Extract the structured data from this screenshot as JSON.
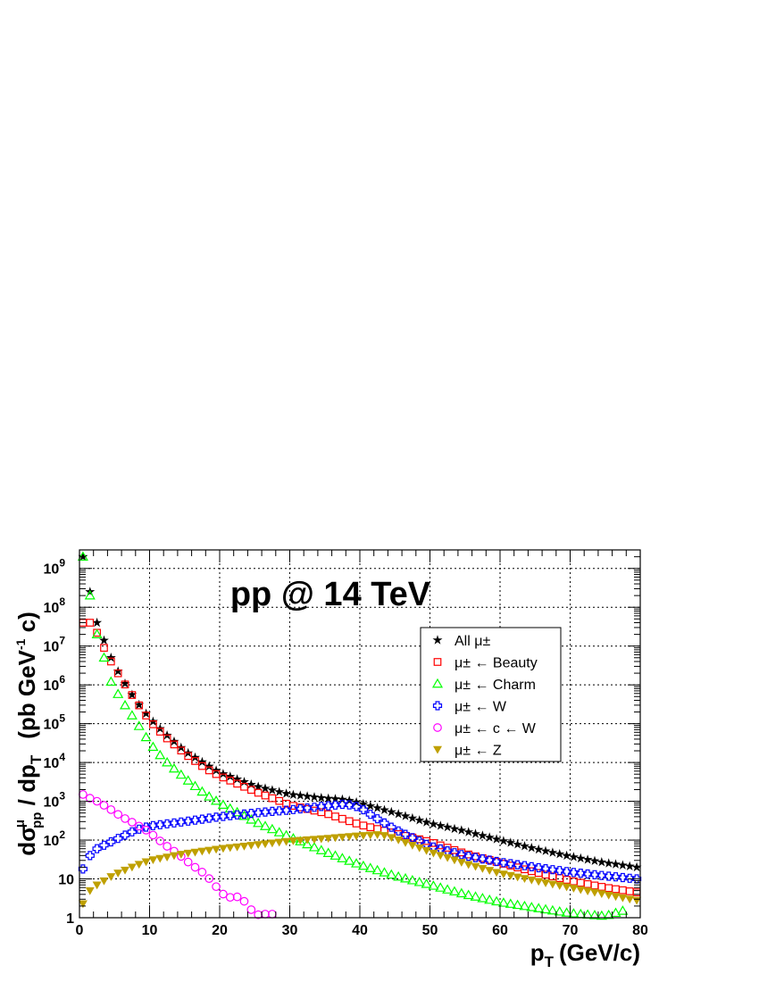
{
  "chart_data": {
    "type": "scatter",
    "title": "pp @ 14 TeV",
    "xlabel_main": "p",
    "xlabel_sub": "T",
    "xlabel_unit": "(GeV/c)",
    "ylabel": "dσ^μ_pp / dp_T (pb GeV^-1 c)",
    "ylabel_parts": {
      "d": "d",
      "sigma": "σ",
      "sup": "μ",
      "sub": "pp",
      "slash": " / dp",
      "subT": "T",
      "unit": "(pb GeV",
      "unitsup": "-1",
      "unitend": " c)"
    },
    "xlim": [
      0,
      80
    ],
    "ylim": [
      1,
      3000000000
    ],
    "yscale": "log",
    "grid": true,
    "legend_position": "top-right",
    "x_ticks": [
      "0",
      "10",
      "20",
      "30",
      "40",
      "50",
      "60",
      "70",
      "80"
    ],
    "y_ticks": [
      {
        "base": "1",
        "exp": ""
      },
      {
        "base": "10",
        "exp": ""
      },
      {
        "base": "10",
        "exp": "2"
      },
      {
        "base": "10",
        "exp": "3"
      },
      {
        "base": "10",
        "exp": "4"
      },
      {
        "base": "10",
        "exp": "5"
      },
      {
        "base": "10",
        "exp": "6"
      },
      {
        "base": "10",
        "exp": "7"
      },
      {
        "base": "10",
        "exp": "8"
      },
      {
        "base": "10",
        "exp": "9"
      }
    ],
    "series": [
      {
        "name": "All μ±",
        "marker": "star",
        "color": "#000000",
        "anchors": [
          [
            0.5,
            2000000000.0
          ],
          [
            1.5,
            250000000.0
          ],
          [
            2.5,
            40000000.0
          ],
          [
            3.5,
            14000000.0
          ],
          [
            4.5,
            5000000.0
          ],
          [
            6,
            1500000.0
          ],
          [
            8,
            400000.0
          ],
          [
            10,
            140000.0
          ],
          [
            12,
            60000.0
          ],
          [
            15,
            20000.0
          ],
          [
            18,
            9000.0
          ],
          [
            20,
            5500.0
          ],
          [
            25,
            2500.0
          ],
          [
            30,
            1500.0
          ],
          [
            35,
            1200.0
          ],
          [
            38,
            1100.0
          ],
          [
            40,
            900.0
          ],
          [
            45,
            500.0
          ],
          [
            50,
            270.0
          ],
          [
            55,
            170.0
          ],
          [
            60,
            100.0
          ],
          [
            65,
            60.0
          ],
          [
            70,
            38.0
          ],
          [
            75,
            26.0
          ],
          [
            79.5,
            20.0
          ]
        ]
      },
      {
        "name": "μ± ← Beauty",
        "marker": "square",
        "color": "#ff0000",
        "anchors": [
          [
            0.5,
            40000000.0
          ],
          [
            1.5,
            40000000.0
          ],
          [
            2.5,
            22000000.0
          ],
          [
            3.5,
            9000000.0
          ],
          [
            4.5,
            4000000.0
          ],
          [
            6,
            1400000.0
          ],
          [
            8,
            400000.0
          ],
          [
            10,
            120000.0
          ],
          [
            12,
            50000.0
          ],
          [
            15,
            17000.0
          ],
          [
            18,
            7000.0
          ],
          [
            20,
            4500.0
          ],
          [
            25,
            1800.0
          ],
          [
            30,
            800.0
          ],
          [
            35,
            500.0
          ],
          [
            40,
            250.0
          ],
          [
            45,
            150.0
          ],
          [
            50,
            90.0
          ],
          [
            55,
            45.0
          ],
          [
            60,
            26.0
          ],
          [
            65,
            15.0
          ],
          [
            70,
            9
          ],
          [
            75,
            6
          ],
          [
            79.5,
            4.5
          ]
        ]
      },
      {
        "name": "μ± ← Charm",
        "marker": "triangle",
        "color": "#00ff00",
        "anchors": [
          [
            0.5,
            2000000000.0
          ],
          [
            1.5,
            200000000.0
          ],
          [
            2.5,
            20000000.0
          ],
          [
            3.5,
            5000000.0
          ],
          [
            4.5,
            1200000.0
          ],
          [
            6,
            400000.0
          ],
          [
            8,
            120000.0
          ],
          [
            10,
            32000.0
          ],
          [
            12,
            12000.0
          ],
          [
            15,
            4000.0
          ],
          [
            18,
            1500.0
          ],
          [
            20,
            900.0
          ],
          [
            25,
            300.0
          ],
          [
            30,
            120.0
          ],
          [
            35,
            50.0
          ],
          [
            40,
            23.0
          ],
          [
            45,
            12.0
          ],
          [
            50,
            7
          ],
          [
            55,
            4
          ],
          [
            60,
            2.5
          ],
          [
            65,
            1.8
          ],
          [
            70,
            1.3
          ],
          [
            75,
            1.1
          ],
          [
            77.5,
            1.5
          ]
        ]
      },
      {
        "name": "μ± ← W",
        "marker": "cross",
        "color": "#0000ff",
        "anchors": [
          [
            0.5,
            18.0
          ],
          [
            1.5,
            40.0
          ],
          [
            2.5,
            60.0
          ],
          [
            5,
            100.0
          ],
          [
            8,
            180.0
          ],
          [
            10,
            230.0
          ],
          [
            15,
            300.0
          ],
          [
            20,
            400.0
          ],
          [
            25,
            500.0
          ],
          [
            30,
            600.0
          ],
          [
            35,
            750.0
          ],
          [
            38,
            850.0
          ],
          [
            40,
            700.0
          ],
          [
            42,
            400.0
          ],
          [
            45,
            190.0
          ],
          [
            50,
            70.0
          ],
          [
            55,
            40.0
          ],
          [
            60,
            27.0
          ],
          [
            65,
            20.0
          ],
          [
            70,
            15.0
          ],
          [
            75,
            12.0
          ],
          [
            79.5,
            10.0
          ]
        ]
      },
      {
        "name": "μ± ← c ← W",
        "marker": "circle",
        "color": "#ff00ff",
        "anchors": [
          [
            0.5,
            1500.0
          ],
          [
            1.5,
            1200.0
          ],
          [
            2.5,
            1000.0
          ],
          [
            4,
            700.0
          ],
          [
            6,
            400.0
          ],
          [
            8,
            260.0
          ],
          [
            10,
            160.0
          ],
          [
            12,
            80.0
          ],
          [
            14,
            45.0
          ],
          [
            16,
            23.0
          ],
          [
            18,
            13.0
          ],
          [
            19,
            8
          ],
          [
            20,
            5
          ],
          [
            21,
            3.3
          ],
          [
            22,
            3.4
          ],
          [
            23,
            3.5
          ],
          [
            24,
            2
          ],
          [
            25,
            1.3
          ],
          [
            26,
            1.1
          ],
          [
            27,
            1.4
          ],
          [
            28,
            1.1
          ]
        ]
      },
      {
        "name": "μ± ← Z",
        "marker": "triangle-down",
        "color": "#bfa000",
        "anchors": [
          [
            0.5,
            2.3
          ],
          [
            1.5,
            5
          ],
          [
            2.5,
            7
          ],
          [
            5,
            13.0
          ],
          [
            8,
            22.0
          ],
          [
            10,
            30.0
          ],
          [
            15,
            45.0
          ],
          [
            20,
            60.0
          ],
          [
            25,
            75.0
          ],
          [
            30,
            95.0
          ],
          [
            35,
            110.0
          ],
          [
            40,
            130.0
          ],
          [
            43,
            140.0
          ],
          [
            45,
            110.0
          ],
          [
            50,
            50.0
          ],
          [
            55,
            25.0
          ],
          [
            60,
            14.0
          ],
          [
            65,
            9
          ],
          [
            70,
            6
          ],
          [
            75,
            4
          ],
          [
            79.5,
            2.8
          ]
        ]
      }
    ]
  }
}
